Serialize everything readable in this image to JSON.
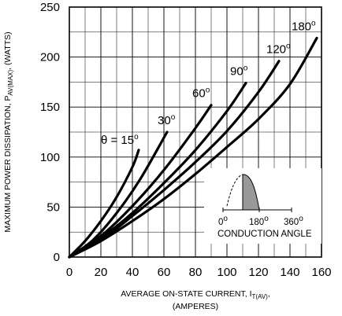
{
  "chart_data": {
    "type": "line",
    "xlabel": "AVERAGE ON-STATE  CURRENT, I",
    "xlabel_sub": "T(AV)",
    "xlabel_tail": ",",
    "xlabel_line2": "(AMPERES)",
    "ylabel": "MAXIMUM POWER DISSIPATION, P",
    "ylabel_sub": "AV(MAX)",
    "ylabel_tail": ", (WATTS)",
    "xlim": [
      0,
      160
    ],
    "ylim": [
      0,
      250
    ],
    "x_ticks": [
      "0",
      "20",
      "40",
      "60",
      "80",
      "100",
      "120",
      "140",
      "160"
    ],
    "y_ticks": [
      "0",
      "50",
      "100",
      "150",
      "200",
      "250"
    ],
    "grid": true,
    "series": [
      {
        "name": "15",
        "label_prefix": "θ = ",
        "degree": "o",
        "x": [
          0,
          10,
          20,
          30,
          40,
          44
        ],
        "y": [
          0,
          16,
          36,
          60,
          90,
          107
        ]
      },
      {
        "name": "30",
        "label_prefix": "",
        "degree": "o",
        "x": [
          0,
          15,
          30,
          45,
          62
        ],
        "y": [
          0,
          17,
          44,
          78,
          125
        ]
      },
      {
        "name": "60",
        "label_prefix": "",
        "degree": "o",
        "x": [
          0,
          20,
          40,
          60,
          80,
          90
        ],
        "y": [
          0,
          21,
          51,
          87,
          129,
          152
        ]
      },
      {
        "name": "90",
        "label_prefix": "",
        "degree": "o",
        "x": [
          0,
          20,
          40,
          60,
          80,
          100,
          112
        ],
        "y": [
          0,
          19,
          44,
          74,
          107,
          146,
          174
        ]
      },
      {
        "name": "120",
        "label_prefix": "",
        "degree": "o",
        "x": [
          0,
          20,
          40,
          60,
          80,
          100,
          120,
          133
        ],
        "y": [
          0,
          17,
          41,
          67,
          95,
          126,
          165,
          196
        ]
      },
      {
        "name": "180",
        "label_prefix": "",
        "degree": "o",
        "x": [
          0,
          20,
          40,
          60,
          80,
          100,
          120,
          140,
          157
        ],
        "y": [
          0,
          16,
          36,
          58,
          83,
          110,
          138,
          173,
          219
        ]
      }
    ],
    "inset": {
      "start_label": "0",
      "mid_label": "180",
      "end_label": "360",
      "degree": "o",
      "caption": "CONDUCTION ANGLE"
    }
  }
}
